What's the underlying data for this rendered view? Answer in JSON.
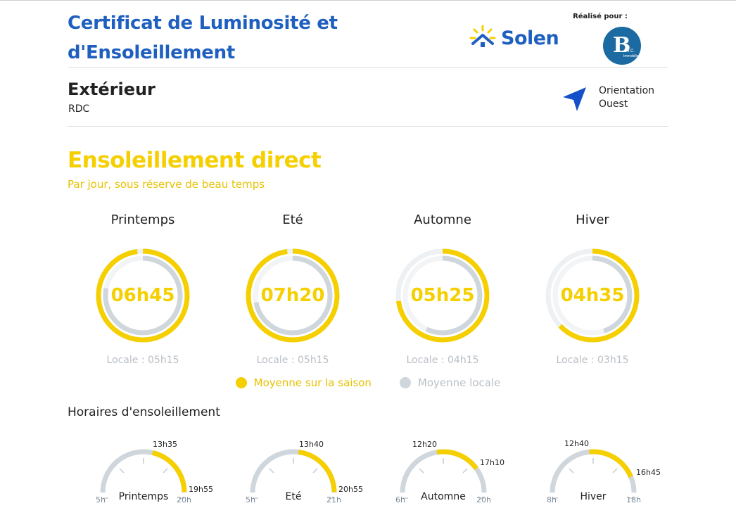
{
  "header": {
    "title_line1": "Certificat de Luminosité et",
    "title_line2": "d'Ensoleillement",
    "brand": "Solen",
    "made_for": "Réalisé pour :",
    "client_logo": {
      "initial": "B",
      "line1": "B.I.C.",
      "line2": "Immobilier"
    }
  },
  "room": {
    "name": "Extérieur",
    "floor": "RDC",
    "orientation_label": "Orientation",
    "orientation_value": "Ouest"
  },
  "direct": {
    "title": "Ensoleillement direct",
    "subtitle": "Par jour, sous réserve de beau temps"
  },
  "seasons": [
    {
      "name": "Printemps",
      "value": "06h45",
      "local": "Locale : 05h15",
      "season_fraction": 0.98,
      "local_fraction": 0.78
    },
    {
      "name": "Eté",
      "value": "07h20",
      "local": "Locale : 05h15",
      "season_fraction": 0.98,
      "local_fraction": 0.72
    },
    {
      "name": "Automne",
      "value": "05h25",
      "local": "Locale : 04h15",
      "season_fraction": 0.73,
      "local_fraction": 0.57
    },
    {
      "name": "Hiver",
      "value": "04h35",
      "local": "Locale : 03h15",
      "season_fraction": 0.63,
      "local_fraction": 0.45
    }
  ],
  "legend": {
    "season": "Moyenne sur la saison",
    "local": "Moyenne locale"
  },
  "hours_title": "Horaires d'ensoleillement",
  "gauges": [
    {
      "name": "Printemps",
      "range_start": "5h",
      "range_end": "20h",
      "sun_start": "13h35",
      "sun_end": "19h55",
      "start_fraction": 0.57,
      "end_fraction": 0.996
    },
    {
      "name": "Eté",
      "range_start": "5h",
      "range_end": "21h",
      "sun_start": "13h40",
      "sun_end": "20h55",
      "start_fraction": 0.54,
      "end_fraction": 0.996
    },
    {
      "name": "Automne",
      "range_start": "6h",
      "range_end": "20h",
      "sun_start": "12h20",
      "sun_end": "17h10",
      "start_fraction": 0.45,
      "end_fraction": 0.8
    },
    {
      "name": "Hiver",
      "range_start": "8h",
      "range_end": "18h",
      "sun_start": "12h40",
      "sun_end": "16h45",
      "start_fraction": 0.47,
      "end_fraction": 0.875
    }
  ],
  "colors": {
    "primary": "#1f5fbf",
    "yellow": "#f5cf00",
    "grey": "#cfd6dc",
    "track": "#eef1f4"
  },
  "icons": {
    "orientation": "navigation-arrow-icon",
    "brand": "sun-house-icon"
  }
}
